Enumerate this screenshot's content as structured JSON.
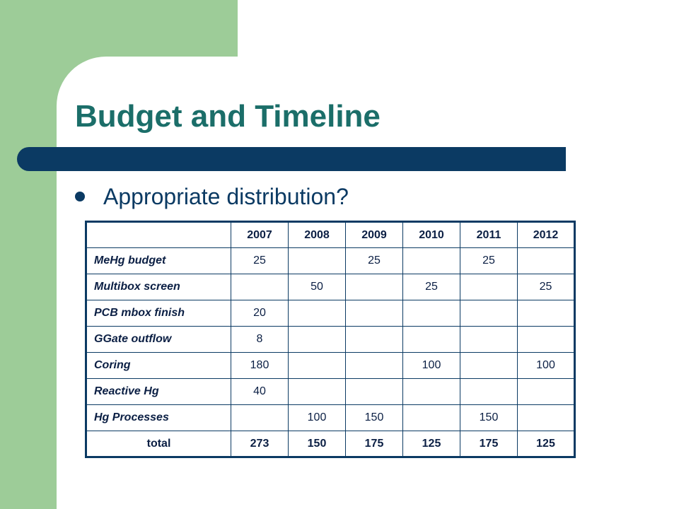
{
  "slide": {
    "title": "Budget and Timeline",
    "bullet": "Appropriate distribution?"
  },
  "table": {
    "years": [
      "2007",
      "2008",
      "2009",
      "2010",
      "2011",
      "2012"
    ],
    "rows": [
      {
        "label": "MeHg budget",
        "values": [
          "25",
          "",
          "25",
          "",
          "25",
          ""
        ]
      },
      {
        "label": "Multibox screen",
        "values": [
          "",
          "50",
          "",
          "25",
          "",
          "25"
        ]
      },
      {
        "label": "PCB mbox finish",
        "values": [
          "20",
          "",
          "",
          "",
          "",
          ""
        ]
      },
      {
        "label": "GGate outflow",
        "values": [
          "8",
          "",
          "",
          "",
          "",
          ""
        ]
      },
      {
        "label": "Coring",
        "values": [
          "180",
          "",
          "",
          "100",
          "",
          "100"
        ]
      },
      {
        "label": "Reactive Hg",
        "values": [
          "40",
          "",
          "",
          "",
          "",
          ""
        ]
      },
      {
        "label": "Hg Processes",
        "values": [
          "",
          "100",
          "150",
          "",
          "150",
          ""
        ]
      }
    ],
    "total": {
      "label": "total",
      "values": [
        "273",
        "150",
        "175",
        "125",
        "175",
        "125"
      ]
    }
  },
  "colors": {
    "side_green": "#9dcc98",
    "title_teal": "#1b6e69",
    "navy": "#0b3a63"
  }
}
